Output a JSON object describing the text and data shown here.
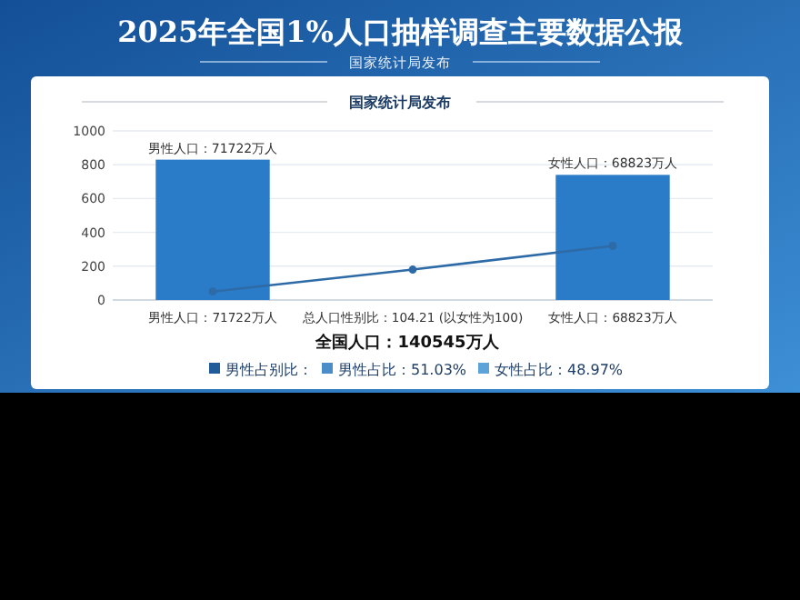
{
  "chart_data": {
    "type": "bar",
    "title": "2025年全国1%人口抽样调查主要数据公报",
    "subtitle": "国家统计局发布",
    "categories": [
      "男性人口：71722万人",
      "总人口性别比：104.21 (以女性为100)",
      "女性人口：68823万人"
    ],
    "series": [
      {
        "color": "#2b7cc8",
        "values": [
          830,
          null,
          740
        ]
      },
      {
        "type": "line",
        "color": "#2d6aa6",
        "values": [
          50,
          180,
          320
        ],
        "marker": "circle"
      }
    ],
    "ylim": [
      0,
      1000
    ],
    "yticks": [
      0,
      200,
      400,
      600,
      800,
      1000
    ],
    "grid": "y",
    "annotations": [
      "国家统计局发布",
      "全国人口：140545万人",
      "男性占别比：",
      "男性占比：51.03%",
      "女性占比：48.97%",
      {
        "text": "男性人口：71722万人",
        "x": "男性人口：71722万人",
        "y": 830
      },
      {
        "text": "女性人口：68823万人",
        "x": "女性人口：68823万人",
        "y": 740
      }
    ]
  }
}
